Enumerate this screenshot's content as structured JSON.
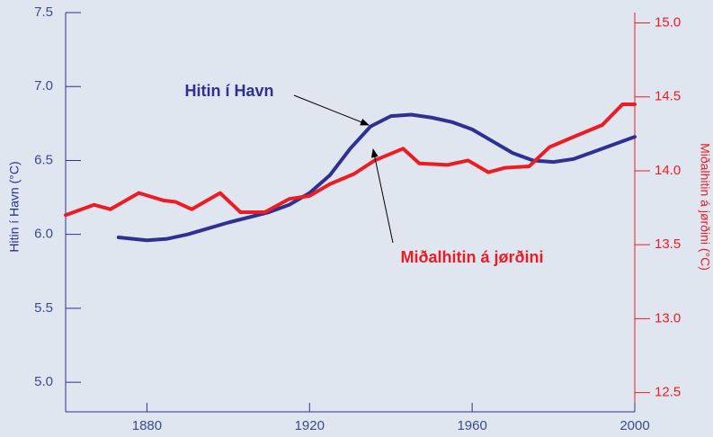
{
  "chart_data": {
    "type": "line",
    "y_label": "Hitin í Havn (°C)",
    "y2_label": "Miðalhitin á jørðini (°C)",
    "xlim": [
      1860,
      2000
    ],
    "xticks": [
      1880,
      1920,
      1960,
      2000
    ],
    "ylim": [
      4.8,
      7.5
    ],
    "yticks": [
      {
        "value": 5,
        "label": "5.0"
      },
      5.5,
      {
        "value": 6,
        "label": "6.0"
      },
      6.5,
      {
        "value": 7,
        "label": "7.0"
      },
      7.5
    ],
    "y2lim": [
      12.37,
      15.07
    ],
    "y2ticks": [
      12.5,
      {
        "value": 13,
        "label": "13.0"
      },
      13.5,
      {
        "value": 14,
        "label": "14.0"
      },
      14.5,
      {
        "value": 15,
        "label": "15.0"
      }
    ],
    "annotations": [
      "Hitin í Havn",
      "Miðalhitin á jørðini"
    ],
    "series": [
      {
        "name": "Hitin í Havn",
        "color": "#2e3192",
        "axis": "y",
        "x": [
          1873,
          1880,
          1885,
          1890,
          1900,
          1910,
          1915,
          1920,
          1925,
          1930,
          1935,
          1940,
          1945,
          1950,
          1955,
          1960,
          1965,
          1970,
          1975,
          1980,
          1985,
          1990,
          1995,
          2000
        ],
        "values": [
          5.98,
          5.96,
          5.97,
          6.0,
          6.08,
          6.15,
          6.2,
          6.28,
          6.4,
          6.58,
          6.73,
          6.8,
          6.81,
          6.79,
          6.76,
          6.71,
          6.63,
          6.55,
          6.5,
          6.49,
          6.51,
          6.56,
          6.61,
          6.66
        ]
      },
      {
        "name": "Miðalhitin á jørðini",
        "color": "#ed1c24",
        "axis": "y2",
        "x": [
          1860,
          1867,
          1871,
          1878,
          1884,
          1887,
          1891,
          1898,
          1903,
          1909,
          1915,
          1920,
          1925,
          1931,
          1936,
          1943,
          1947,
          1954,
          1959,
          1964,
          1968,
          1974,
          1979,
          1985,
          1992,
          1997,
          2000
        ],
        "values": [
          13.7,
          13.77,
          13.74,
          13.85,
          13.8,
          13.79,
          13.74,
          13.85,
          13.72,
          13.72,
          13.81,
          13.83,
          13.91,
          13.98,
          14.07,
          14.15,
          14.05,
          14.04,
          14.07,
          13.99,
          14.02,
          14.03,
          14.16,
          14.23,
          14.31,
          14.45,
          14.45
        ]
      }
    ]
  }
}
